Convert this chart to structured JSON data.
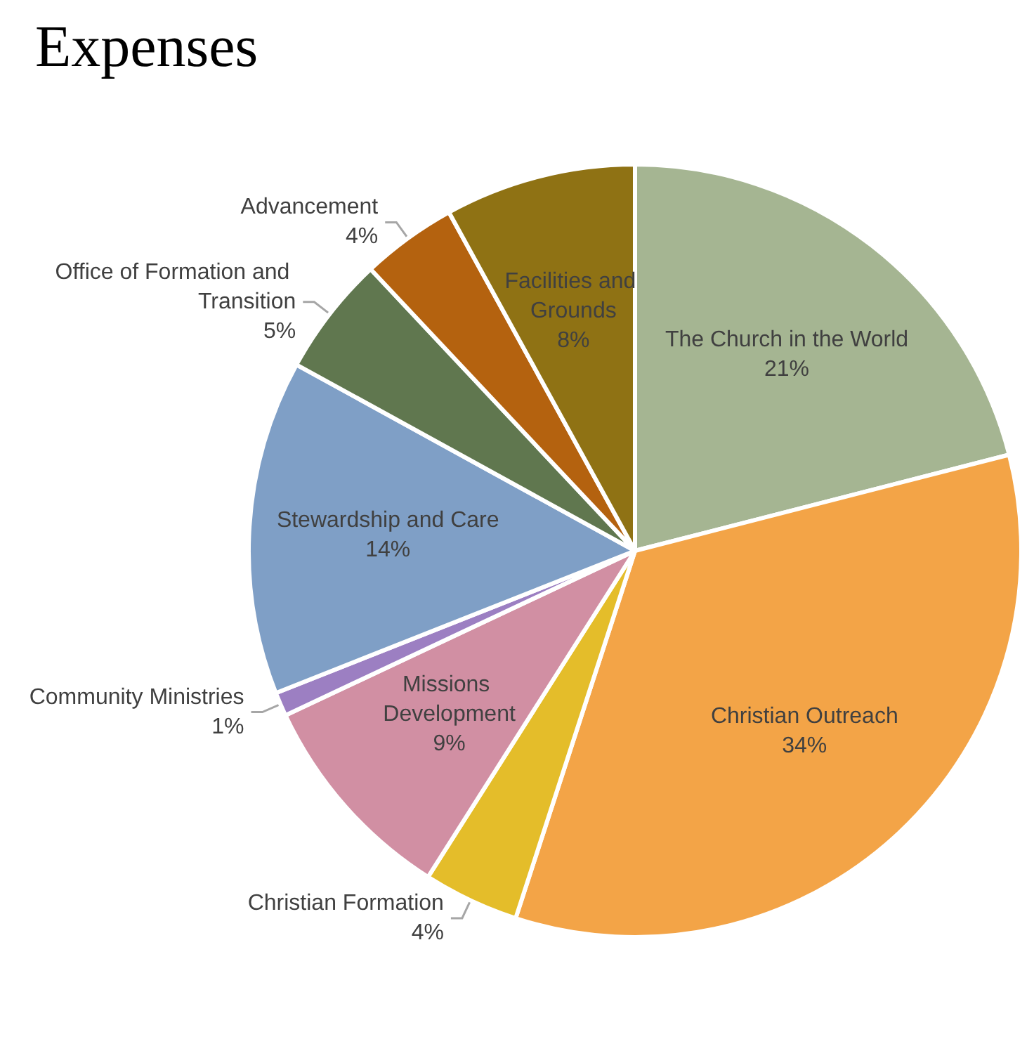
{
  "chart_data": {
    "type": "pie",
    "title": "Expenses",
    "categories": [
      "The Church in the World",
      "Christian Outreach",
      "Christian Formation",
      "Missions Development",
      "Community Ministries",
      "Stewardship and Care",
      "Office of Formation and Transition",
      "Advancement",
      "Facilities and Grounds"
    ],
    "values": [
      21,
      34,
      4,
      9,
      1,
      14,
      5,
      4,
      8
    ],
    "value_labels": [
      "21%",
      "34%",
      "4%",
      "9%",
      "1%",
      "14%",
      "5%",
      "4%",
      "8%"
    ],
    "colors": [
      "#a5b592",
      "#f3a447",
      "#e4bd2a",
      "#d18fa3",
      "#9c7fc2",
      "#7f9fc6",
      "#60774f",
      "#b4620f",
      "#8f7214"
    ]
  }
}
